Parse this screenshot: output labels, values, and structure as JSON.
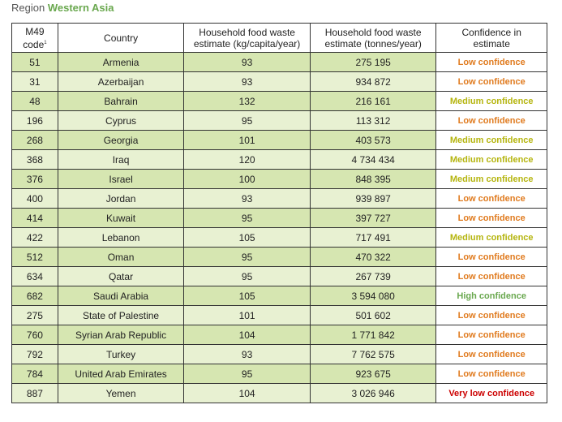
{
  "region": {
    "label": "Region",
    "name": "Western Asia"
  },
  "headers": {
    "m49_line1": "M49",
    "m49_line2": "code",
    "m49_sup": "1",
    "country": "Country",
    "kg_line1": "Household food waste",
    "kg_line2": "estimate (kg/capita/year)",
    "tonnes_line1": "Household food waste",
    "tonnes_line2": "estimate (tonnes/year)",
    "conf_line1": "Confidence in",
    "conf_line2": "estimate"
  },
  "rows": [
    {
      "code": "51",
      "country": "Armenia",
      "kg": "93",
      "tonnes": "275 195",
      "confidence": "Low confidence",
      "level": "low"
    },
    {
      "code": "31",
      "country": "Azerbaijan",
      "kg": "93",
      "tonnes": "934 872",
      "confidence": "Low confidence",
      "level": "low"
    },
    {
      "code": "48",
      "country": "Bahrain",
      "kg": "132",
      "tonnes": "216 161",
      "confidence": "Medium confidence",
      "level": "medium"
    },
    {
      "code": "196",
      "country": "Cyprus",
      "kg": "95",
      "tonnes": "113 312",
      "confidence": "Low confidence",
      "level": "low"
    },
    {
      "code": "268",
      "country": "Georgia",
      "kg": "101",
      "tonnes": "403 573",
      "confidence": "Medium confidence",
      "level": "medium"
    },
    {
      "code": "368",
      "country": "Iraq",
      "kg": "120",
      "tonnes": "4 734 434",
      "confidence": "Medium confidence",
      "level": "medium"
    },
    {
      "code": "376",
      "country": "Israel",
      "kg": "100",
      "tonnes": "848 395",
      "confidence": "Medium confidence",
      "level": "medium"
    },
    {
      "code": "400",
      "country": "Jordan",
      "kg": "93",
      "tonnes": "939 897",
      "confidence": "Low confidence",
      "level": "low"
    },
    {
      "code": "414",
      "country": "Kuwait",
      "kg": "95",
      "tonnes": "397 727",
      "confidence": "Low confidence",
      "level": "low"
    },
    {
      "code": "422",
      "country": "Lebanon",
      "kg": "105",
      "tonnes": "717 491",
      "confidence": "Medium confidence",
      "level": "medium"
    },
    {
      "code": "512",
      "country": "Oman",
      "kg": "95",
      "tonnes": "470 322",
      "confidence": "Low confidence",
      "level": "low"
    },
    {
      "code": "634",
      "country": "Qatar",
      "kg": "95",
      "tonnes": "267 739",
      "confidence": "Low confidence",
      "level": "low"
    },
    {
      "code": "682",
      "country": "Saudi Arabia",
      "kg": "105",
      "tonnes": "3 594 080",
      "confidence": "High confidence",
      "level": "high"
    },
    {
      "code": "275",
      "country": "State of Palestine",
      "kg": "101",
      "tonnes": "501 602",
      "confidence": "Low confidence",
      "level": "low"
    },
    {
      "code": "760",
      "country": "Syrian Arab Republic",
      "kg": "104",
      "tonnes": "1 771 842",
      "confidence": "Low confidence",
      "level": "low"
    },
    {
      "code": "792",
      "country": "Turkey",
      "kg": "93",
      "tonnes": "7 762 575",
      "confidence": "Low confidence",
      "level": "low"
    },
    {
      "code": "784",
      "country": "United Arab Emirates",
      "kg": "95",
      "tonnes": "923 675",
      "confidence": "Low confidence",
      "level": "low"
    },
    {
      "code": "887",
      "country": "Yemen",
      "kg": "104",
      "tonnes": "3 026 946",
      "confidence": "Very low confidence",
      "level": "verylow"
    }
  ],
  "colors": {
    "low": "#e07b1f",
    "medium": "#b5b50f",
    "high": "#6aa84f",
    "verylow": "#cc0000",
    "row_dark": "#d6e6b1",
    "row_light": "#e8f1d2"
  }
}
